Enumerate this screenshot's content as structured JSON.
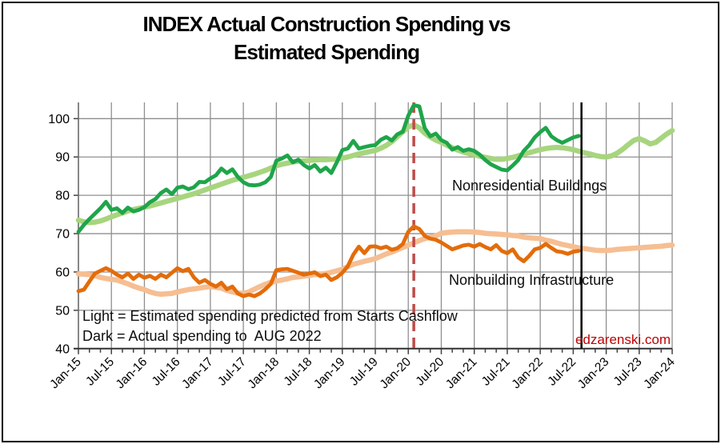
{
  "title": {
    "line1": "INDEX Actual Construction Spending vs",
    "line2": "Estimated Spending"
  },
  "annotations": {
    "nonresidential_label": "Nonresidential Buildings",
    "nonbuilding_label": "Nonbuilding Infrastructure",
    "legend_light": "Light = Estimated spending predicted from Starts Cashflow",
    "legend_dark": "Dark = Actual spending to  AUG 2022"
  },
  "watermark": "edzarenski.com",
  "colors": {
    "dark_green": "#1EA54A",
    "light_green": "#A7D57E",
    "dark_orange": "#E36C0A",
    "light_orange": "#F6BE92",
    "red_dashed": "#BE4B48",
    "black_line": "#000000",
    "gridline": "#8F8F8F",
    "axis": "#303030",
    "tick": "#404040",
    "text": "#000000",
    "watermark_red": "#C00000"
  },
  "chart_data": {
    "type": "line",
    "title": "INDEX Actual Construction Spending vs Estimated Spending",
    "x_start": "Jan-15",
    "x_end": "Jan-24",
    "months_per_point": 1,
    "x_tick_labels": [
      "Jan-15",
      "Jul-15",
      "Jan-16",
      "Jul-16",
      "Jan-17",
      "Jul-17",
      "Jan-18",
      "Jul-18",
      "Jan-19",
      "Jul-19",
      "Jan-20",
      "Jul-20",
      "Jan-21",
      "Jul-21",
      "Jan-22",
      "Jul-22",
      "Jan-23",
      "Jul-23",
      "Jan-24"
    ],
    "x_major_tick_every_months": 6,
    "x_minor_tick_every_months": 2,
    "y_tick_labels": [
      "40",
      "50",
      "60",
      "70",
      "80",
      "90",
      "100"
    ],
    "y_ticks": [
      40,
      50,
      60,
      70,
      80,
      90,
      100
    ],
    "ylim": [
      40,
      104.4
    ],
    "grid": true,
    "legend_position": "in-chart text labels",
    "series": [
      {
        "name": "Nonresidential Buildings - Estimated (light green)",
        "color_key": "light_green",
        "width": 6.5,
        "values": [
          73.5,
          73.1,
          72.9,
          73.0,
          73.3,
          73.8,
          74.4,
          74.9,
          75.4,
          75.9,
          76.3,
          76.6,
          76.9,
          77.2,
          77.6,
          78.0,
          78.4,
          78.8,
          79.2,
          79.6,
          80.0,
          80.4,
          80.9,
          81.4,
          81.9,
          82.4,
          82.9,
          83.4,
          83.9,
          84.3,
          84.7,
          85.1,
          85.5,
          86.0,
          86.5,
          87.1,
          87.7,
          88.1,
          88.4,
          88.7,
          88.9,
          89.0,
          89.1,
          89.2,
          89.3,
          89.3,
          89.4,
          89.5,
          89.7,
          90.0,
          90.4,
          90.8,
          91.1,
          91.4,
          91.7,
          92.3,
          93.0,
          94.0,
          95.3,
          96.6,
          97.8,
          98.4,
          97.6,
          96.2,
          95.2,
          94.4,
          93.8,
          93.1,
          92.4,
          91.8,
          91.3,
          90.9,
          90.6,
          90.2,
          89.9,
          89.6,
          89.4,
          89.4,
          89.6,
          89.9,
          90.3,
          90.7,
          91.1,
          91.5,
          91.9,
          92.2,
          92.4,
          92.5,
          92.4,
          92.2,
          91.9,
          91.5,
          91.1,
          90.8,
          90.4,
          90.1,
          90.0,
          90.3,
          91.0,
          92.0,
          93.2,
          94.3,
          94.8,
          94.2,
          93.4,
          93.8,
          94.9,
          96.0,
          96.9
        ]
      },
      {
        "name": "Nonresidential Buildings - Actual (dark green)",
        "color_key": "dark_green",
        "width": 4.8,
        "values": [
          70.5,
          72.3,
          73.8,
          75.2,
          76.6,
          78.3,
          76.2,
          76.6,
          75.4,
          76.8,
          75.8,
          76.2,
          76.9,
          78.2,
          79.0,
          80.6,
          81.5,
          80.3,
          82.0,
          82.3,
          81.6,
          82.1,
          83.5,
          83.4,
          84.4,
          85.2,
          87.0,
          85.8,
          86.8,
          84.8,
          83.4,
          82.7,
          82.6,
          82.8,
          83.4,
          84.8,
          89.0,
          89.6,
          90.4,
          88.6,
          89.3,
          87.9,
          87.0,
          87.9,
          86.2,
          87.2,
          85.8,
          88.6,
          91.8,
          92.2,
          94.2,
          92.2,
          92.6,
          92.9,
          93.1,
          94.5,
          95.2,
          94.3,
          95.9,
          96.6,
          100.8,
          103.5,
          103.2,
          97.5,
          95.4,
          96.1,
          94.4,
          93.7,
          91.9,
          92.6,
          91.6,
          92.0,
          91.6,
          90.6,
          89.2,
          88.1,
          87.4,
          86.7,
          86.5,
          87.8,
          89.2,
          91.6,
          93.1,
          95.1,
          96.5,
          97.6,
          95.4,
          94.4,
          93.7,
          94.4,
          95.1,
          95.5
        ]
      },
      {
        "name": "Nonbuilding Infrastructure - Estimated (light orange)",
        "color_key": "light_orange",
        "width": 6.5,
        "values": [
          59.5,
          59.4,
          59.3,
          59.0,
          58.6,
          58.3,
          58.1,
          57.9,
          57.4,
          56.9,
          56.3,
          55.8,
          55.4,
          54.8,
          54.4,
          54.2,
          54.3,
          54.4,
          54.8,
          55.1,
          55.4,
          55.6,
          55.8,
          56.0,
          56.2,
          56.0,
          55.8,
          55.2,
          54.8,
          54.5,
          54.4,
          54.8,
          55.5,
          56.2,
          56.8,
          57.3,
          57.6,
          57.9,
          58.2,
          58.6,
          58.7,
          58.9,
          59.1,
          59.3,
          59.4,
          59.6,
          59.9,
          60.3,
          60.7,
          61.4,
          62.0,
          62.4,
          62.8,
          63.1,
          63.5,
          64.1,
          64.7,
          65.2,
          65.8,
          66.4,
          67.0,
          67.6,
          68.2,
          68.7,
          69.1,
          69.4,
          70.1,
          70.3,
          70.4,
          70.5,
          70.5,
          70.5,
          70.4,
          70.3,
          70.1,
          70.0,
          69.9,
          69.8,
          69.7,
          69.5,
          69.4,
          69.1,
          68.9,
          68.8,
          68.7,
          68.3,
          68.0,
          67.6,
          67.2,
          66.9,
          66.6,
          66.3,
          66.1,
          65.9,
          65.7,
          65.6,
          65.6,
          65.7,
          65.9,
          66.0,
          66.1,
          66.2,
          66.3,
          66.4,
          66.5,
          66.6,
          66.7,
          66.9,
          67.0
        ]
      },
      {
        "name": "Nonbuilding Infrastructure - Actual (dark orange)",
        "color_key": "dark_orange",
        "width": 4.8,
        "values": [
          55.0,
          55.4,
          57.5,
          59.6,
          60.3,
          61.0,
          60.3,
          59.3,
          58.6,
          59.6,
          58.2,
          59.3,
          58.5,
          59.0,
          58.2,
          59.3,
          58.6,
          59.8,
          61.0,
          60.2,
          60.8,
          58.6,
          57.2,
          57.9,
          56.9,
          56.2,
          57.2,
          55.5,
          56.2,
          54.4,
          53.7,
          54.1,
          53.7,
          54.4,
          55.5,
          56.9,
          60.5,
          60.7,
          60.8,
          60.3,
          59.8,
          59.3,
          59.6,
          59.9,
          58.9,
          59.3,
          57.9,
          58.6,
          59.8,
          61.5,
          64.5,
          66.6,
          64.9,
          66.6,
          66.7,
          66.2,
          66.6,
          65.8,
          66.2,
          67.3,
          70.5,
          71.9,
          71.2,
          69.4,
          68.7,
          68.4,
          67.7,
          66.8,
          65.9,
          66.4,
          66.9,
          67.1,
          66.6,
          67.3,
          66.5,
          65.9,
          67.0,
          65.5,
          64.9,
          65.9,
          63.8,
          62.8,
          64.2,
          65.9,
          66.3,
          67.3,
          66.3,
          65.4,
          65.2,
          64.7,
          65.3,
          65.5
        ]
      }
    ],
    "markers": {
      "red_dashed_vline": {
        "label": "Feb-20",
        "month_index": 61
      },
      "black_vline": {
        "label": "Aug-22",
        "month_index": 91.5
      }
    }
  }
}
